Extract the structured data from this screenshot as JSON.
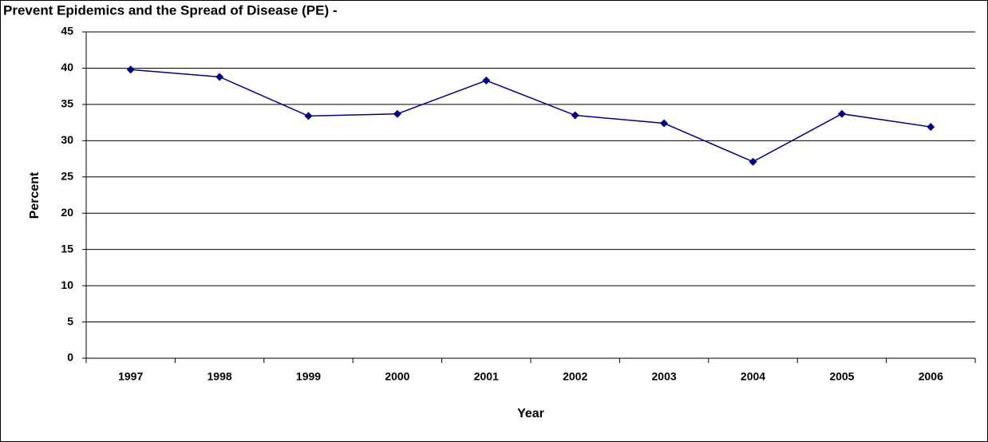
{
  "chart_data": {
    "type": "line",
    "title": "Prevent Epidemics and the Spread of Disease (PE) -",
    "x_label": "Year",
    "y_label": "Percent",
    "categories": [
      "1997",
      "1998",
      "1999",
      "2000",
      "2001",
      "2002",
      "2003",
      "2004",
      "2005",
      "2006"
    ],
    "values": [
      39.8,
      38.8,
      33.4,
      33.7,
      38.3,
      33.5,
      32.4,
      27.1,
      33.7,
      31.9
    ],
    "color": "#000080",
    "ylim": [
      0,
      45
    ],
    "yticks": [
      0,
      5,
      10,
      15,
      20,
      25,
      30,
      35,
      40,
      45
    ],
    "grid": true
  }
}
